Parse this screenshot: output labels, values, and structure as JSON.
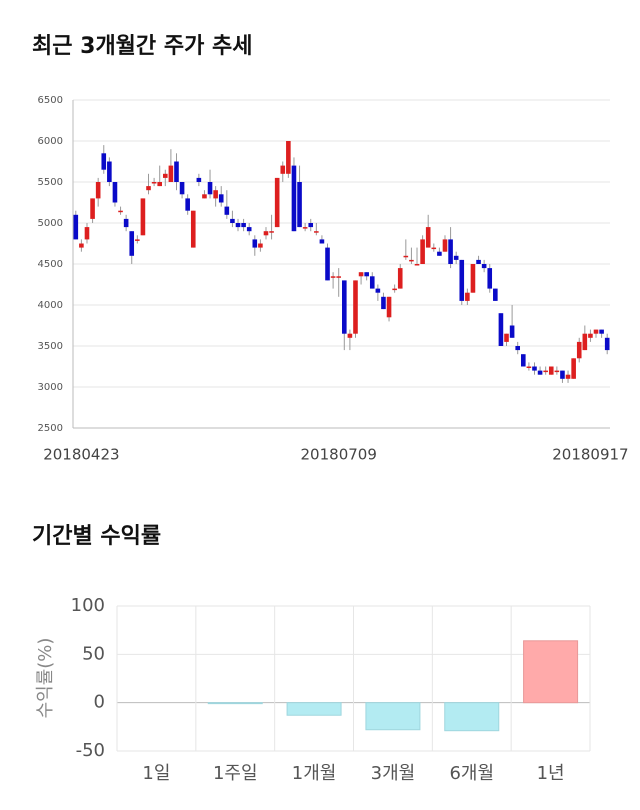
{
  "chart_data": [
    {
      "type": "candlestick",
      "title": "최근 3개월간 주가 추세",
      "categories": [
        null,
        "20180423",
        null,
        null,
        null,
        null,
        null,
        null,
        null,
        null,
        null,
        null,
        null,
        null,
        null,
        null,
        null,
        null,
        null,
        null,
        null,
        null,
        null,
        null,
        null,
        null,
        null,
        null,
        null,
        null,
        null,
        null,
        null,
        null,
        null,
        null,
        null,
        null,
        null,
        null,
        null,
        null,
        null,
        null,
        null,
        null,
        null,
        "20180709",
        null,
        null,
        null,
        null,
        null,
        null,
        null,
        null,
        null,
        null,
        null,
        null,
        null,
        null,
        null,
        null,
        null,
        null,
        null,
        null,
        null,
        null,
        null,
        null,
        null,
        null,
        null,
        null,
        null,
        null,
        null,
        null,
        null,
        null,
        null,
        null,
        null,
        null,
        null,
        null,
        null,
        null,
        null,
        null,
        "20180917",
        null,
        null,
        null
      ],
      "open": [
        5100,
        4700,
        4800,
        5050,
        5300,
        5850,
        5750,
        5500,
        5150,
        5050,
        4900,
        4800,
        4850,
        5400,
        5500,
        5450,
        5550,
        5500,
        5750,
        5500,
        5300,
        4700,
        5550,
        5300,
        5500,
        5300,
        5350,
        5200,
        5050,
        5000,
        5000,
        4950,
        4800,
        4700,
        4850,
        4900,
        4950,
        5600,
        5600,
        5700,
        5500,
        4950,
        5000,
        4900,
        4800,
        4700,
        4350,
        4350,
        4300,
        3600,
        3650,
        4350,
        4400,
        4350,
        4200,
        4100,
        3850,
        4200,
        4200,
        4600,
        4550,
        4500,
        4500,
        4700,
        4700,
        4650,
        4650,
        4800,
        4600,
        4550,
        4050,
        4150,
        4550,
        4500,
        4450,
        4200,
        3900,
        3550,
        3750,
        3500,
        3400,
        3250,
        3250,
        3200,
        3200,
        3150,
        3200,
        3200,
        3100,
        3100,
        3350,
        3450,
        3600,
        3650,
        3700,
        3600
      ],
      "high": [
        5150,
        4800,
        5000,
        5300,
        5550,
        5950,
        5800,
        5500,
        5200,
        5100,
        4900,
        4850,
        5300,
        5600,
        5550,
        5700,
        5650,
        5900,
        5850,
        5500,
        5350,
        5150,
        5600,
        5400,
        5650,
        5450,
        5450,
        5400,
        5150,
        5050,
        5050,
        5000,
        4850,
        4800,
        4950,
        5100,
        5550,
        5750,
        6000,
        5800,
        5700,
        5000,
        5050,
        5000,
        4850,
        4750,
        4400,
        4450,
        4300,
        3700,
        4300,
        4400,
        4400,
        4400,
        4250,
        4150,
        4100,
        4250,
        4500,
        4800,
        4700,
        4700,
        4850,
        5100,
        4750,
        4700,
        4850,
        4950,
        4650,
        4550,
        4200,
        4500,
        4600,
        4550,
        4500,
        4200,
        3900,
        3650,
        4000,
        3550,
        3400,
        3300,
        3300,
        3250,
        3250,
        3250,
        3250,
        3200,
        3200,
        3350,
        3600,
        3750,
        3700,
        3700,
        3700,
        3650
      ],
      "low": [
        4800,
        4650,
        4750,
        5000,
        5200,
        5600,
        5450,
        5200,
        5100,
        4900,
        4500,
        4750,
        4850,
        5350,
        5450,
        5450,
        5450,
        5500,
        5400,
        5300,
        5100,
        4700,
        5450,
        5300,
        5300,
        5200,
        5200,
        5050,
        4950,
        4900,
        4900,
        4850,
        4600,
        4650,
        4800,
        4800,
        4950,
        5500,
        5550,
        4900,
        4950,
        4900,
        4900,
        4850,
        4750,
        4300,
        4200,
        4100,
        3450,
        3450,
        3600,
        4250,
        4300,
        4200,
        4050,
        3950,
        3800,
        4150,
        4200,
        4550,
        4500,
        4500,
        4500,
        4700,
        4650,
        4600,
        4650,
        4450,
        4500,
        4000,
        4000,
        4150,
        4500,
        4400,
        4150,
        4050,
        3500,
        3500,
        3600,
        3400,
        3250,
        3200,
        3150,
        3150,
        3150,
        3150,
        3150,
        3050,
        3050,
        3100,
        3300,
        3450,
        3550,
        3600,
        3600,
        3400
      ],
      "close": [
        4800,
        4750,
        4950,
        5300,
        5500,
        5650,
        5500,
        5250,
        5150,
        4950,
        4600,
        4800,
        5300,
        5450,
        5500,
        5500,
        5600,
        5700,
        5500,
        5350,
        5150,
        5150,
        5500,
        5350,
        5350,
        5400,
        5250,
        5100,
        5000,
        4950,
        4950,
        4900,
        4700,
        4750,
        4900,
        4900,
        5550,
        5700,
        6000,
        4900,
        4950,
        4950,
        4950,
        4900,
        4750,
        4300,
        4350,
        4350,
        3650,
        3650,
        4300,
        4400,
        4350,
        4200,
        4150,
        3950,
        4100,
        4200,
        4450,
        4600,
        4550,
        4500,
        4800,
        4950,
        4700,
        4600,
        4800,
        4500,
        4550,
        4050,
        4150,
        4500,
        4500,
        4450,
        4200,
        4050,
        3500,
        3650,
        3600,
        3450,
        3250,
        3250,
        3200,
        3150,
        3200,
        3250,
        3200,
        3100,
        3150,
        3350,
        3550,
        3650,
        3650,
        3700,
        3650,
        3450
      ],
      "up_color": "#dd1f1f",
      "down_color": "#0a0ac8",
      "ylim": [
        2500,
        6500
      ],
      "yticks": [
        2500,
        3000,
        3500,
        4000,
        4500,
        5000,
        5500,
        6000,
        6500
      ],
      "grid": true
    },
    {
      "type": "bar",
      "title": "기간별 수익률",
      "y_label": "수익률(%)",
      "categories": [
        "1일",
        "1주일",
        "1개월",
        "3개월",
        "6개월",
        "1년"
      ],
      "values": [
        0,
        -1,
        -13,
        -28,
        -29,
        64
      ],
      "positive_color": "#ffaaaa",
      "negative_color": "#b3ebf2",
      "ylim": [
        -50,
        100
      ],
      "yticks": [
        -50,
        0,
        50,
        100
      ],
      "grid": true
    }
  ]
}
